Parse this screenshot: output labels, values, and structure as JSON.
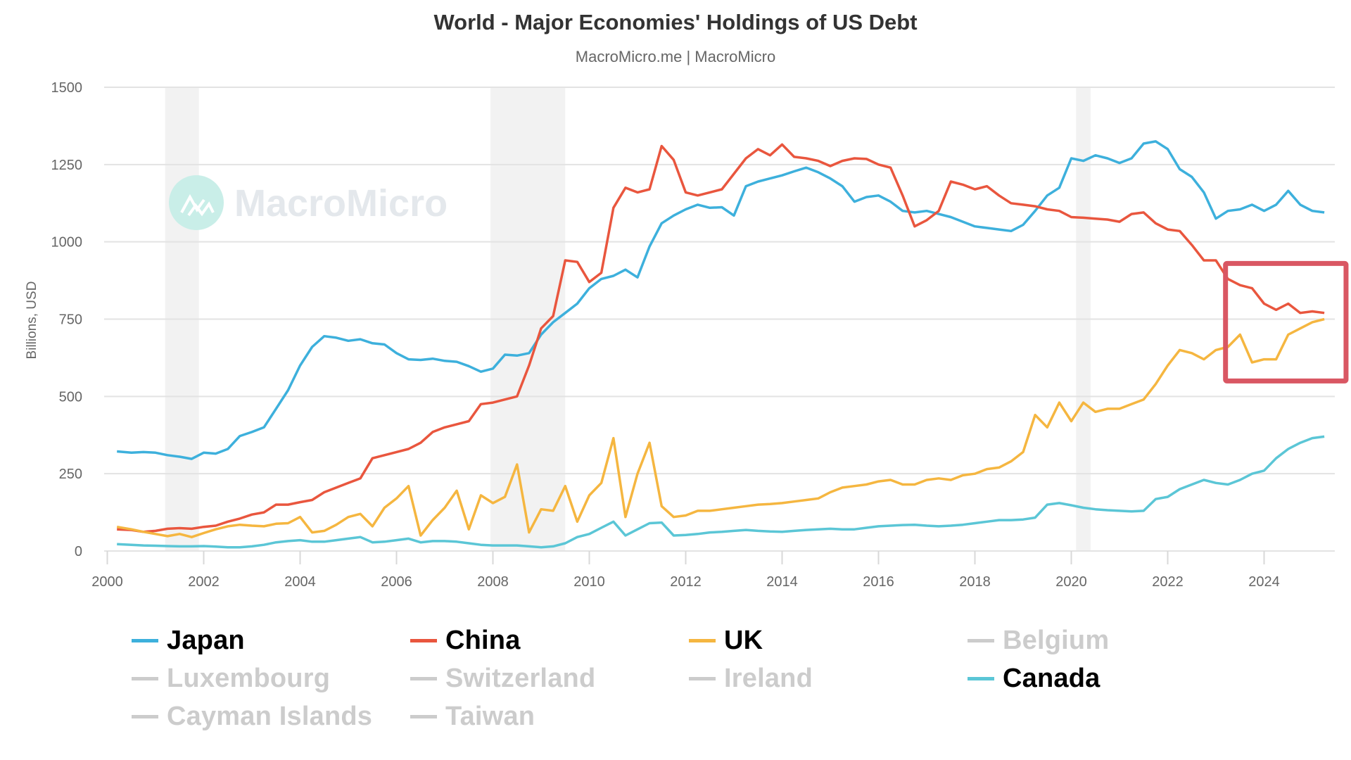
{
  "chart_data": {
    "type": "line",
    "title": "World - Major Economies' Holdings of US Debt",
    "subtitle": "MacroMicro.me | MacroMicro",
    "watermark": "MacroMicro",
    "xlabel": "",
    "ylabel": "Billions, USD",
    "xlim": [
      2000,
      2025.5
    ],
    "ylim": [
      0,
      1500
    ],
    "x_ticks": [
      "2000",
      "2002",
      "2004",
      "2006",
      "2008",
      "2010",
      "2012",
      "2014",
      "2016",
      "2018",
      "2020",
      "2022",
      "2024"
    ],
    "y_ticks": [
      "0",
      "250",
      "500",
      "750",
      "1000",
      "1250",
      "1500"
    ],
    "grid": true,
    "legend_position": "bottom",
    "recession_bands": [
      [
        2001.2,
        2001.9
      ],
      [
        2007.95,
        2009.5
      ],
      [
        2020.1,
        2020.4
      ]
    ],
    "highlight_box": {
      "x_range": [
        2023.2,
        2025.7
      ],
      "y_range": [
        550,
        930
      ],
      "color": "#d95763"
    },
    "x": [
      2000.2,
      2000.5,
      2000.75,
      2001,
      2001.25,
      2001.5,
      2001.75,
      2002,
      2002.25,
      2002.5,
      2002.75,
      2003,
      2003.25,
      2003.5,
      2003.75,
      2004,
      2004.25,
      2004.5,
      2004.75,
      2005,
      2005.25,
      2005.5,
      2005.75,
      2006,
      2006.25,
      2006.5,
      2006.75,
      2007,
      2007.25,
      2007.5,
      2007.75,
      2008,
      2008.25,
      2008.5,
      2008.75,
      2009,
      2009.25,
      2009.5,
      2009.75,
      2010,
      2010.25,
      2010.5,
      2010.75,
      2011,
      2011.25,
      2011.5,
      2011.75,
      2012,
      2012.25,
      2012.5,
      2012.75,
      2013,
      2013.25,
      2013.5,
      2013.75,
      2014,
      2014.25,
      2014.5,
      2014.75,
      2015,
      2015.25,
      2015.5,
      2015.75,
      2016,
      2016.25,
      2016.5,
      2016.75,
      2017,
      2017.25,
      2017.5,
      2017.75,
      2018,
      2018.25,
      2018.5,
      2018.75,
      2019,
      2019.25,
      2019.5,
      2019.75,
      2020,
      2020.25,
      2020.5,
      2020.75,
      2021,
      2021.25,
      2021.5,
      2021.75,
      2022,
      2022.25,
      2022.5,
      2022.75,
      2023,
      2023.25,
      2023.5,
      2023.75,
      2024,
      2024.25,
      2024.5,
      2024.75,
      2025,
      2025.25
    ],
    "series": [
      {
        "name": "Japan",
        "color": "#3db0dc",
        "visible": true,
        "values": [
          322,
          318,
          320,
          318,
          310,
          305,
          298,
          318,
          315,
          330,
          372,
          385,
          400,
          460,
          520,
          600,
          660,
          695,
          690,
          680,
          685,
          672,
          668,
          640,
          620,
          618,
          622,
          615,
          612,
          598,
          580,
          590,
          635,
          632,
          640,
          700,
          740,
          770,
          800,
          850,
          880,
          890,
          910,
          885,
          985,
          1060,
          1085,
          1105,
          1120,
          1110,
          1112,
          1085,
          1180,
          1195,
          1205,
          1215,
          1228,
          1240,
          1225,
          1205,
          1180,
          1130,
          1145,
          1150,
          1130,
          1100,
          1095,
          1100,
          1090,
          1080,
          1065,
          1050,
          1045,
          1040,
          1035,
          1055,
          1100,
          1150,
          1175,
          1270,
          1262,
          1280,
          1270,
          1255,
          1270,
          1318,
          1325,
          1300,
          1235,
          1210,
          1160,
          1075,
          1100,
          1105,
          1120,
          1100,
          1120,
          1165,
          1120,
          1100,
          1095,
          1075,
          1135
        ]
      },
      {
        "name": "China",
        "color": "#e9563e",
        "visible": true,
        "values": [
          70,
          68,
          62,
          65,
          72,
          74,
          72,
          78,
          82,
          95,
          105,
          118,
          125,
          150,
          150,
          158,
          165,
          190,
          205,
          220,
          235,
          300,
          310,
          320,
          330,
          350,
          385,
          400,
          410,
          420,
          475,
          480,
          490,
          500,
          600,
          720,
          760,
          940,
          935,
          870,
          900,
          1110,
          1175,
          1160,
          1170,
          1310,
          1265,
          1160,
          1150,
          1160,
          1170,
          1220,
          1270,
          1300,
          1280,
          1315,
          1275,
          1270,
          1262,
          1245,
          1262,
          1270,
          1268,
          1250,
          1240,
          1150,
          1050,
          1070,
          1100,
          1195,
          1185,
          1170,
          1180,
          1150,
          1125,
          1120,
          1115,
          1105,
          1100,
          1080,
          1078,
          1075,
          1072,
          1065,
          1090,
          1095,
          1060,
          1040,
          1035,
          990,
          940,
          940,
          880,
          860,
          850,
          800,
          780,
          800,
          770,
          775,
          770,
          760,
          760
        ]
      },
      {
        "name": "UK",
        "color": "#f5b640",
        "visible": true,
        "values": [
          78,
          70,
          62,
          55,
          48,
          55,
          45,
          58,
          70,
          80,
          85,
          82,
          80,
          88,
          90,
          110,
          60,
          65,
          85,
          110,
          120,
          80,
          140,
          170,
          210,
          50,
          100,
          140,
          195,
          70,
          180,
          155,
          175,
          280,
          60,
          135,
          130,
          210,
          95,
          180,
          220,
          365,
          110,
          250,
          350,
          145,
          110,
          115,
          130,
          130,
          135,
          140,
          145,
          150,
          152,
          155,
          160,
          165,
          170,
          190,
          205,
          210,
          215,
          225,
          230,
          215,
          215,
          230,
          235,
          230,
          245,
          250,
          265,
          270,
          290,
          320,
          440,
          400,
          480,
          420,
          480,
          450,
          460,
          460,
          475,
          490,
          540,
          600,
          650,
          640,
          620,
          650,
          660,
          700,
          610,
          620,
          620,
          700,
          720,
          740,
          750,
          760,
          800
        ]
      },
      {
        "name": "Belgium",
        "color": "#cccccc",
        "visible": false,
        "values": []
      },
      {
        "name": "Luxembourg",
        "color": "#cccccc",
        "visible": false,
        "values": []
      },
      {
        "name": "Switzerland",
        "color": "#cccccc",
        "visible": false,
        "values": []
      },
      {
        "name": "Ireland",
        "color": "#cccccc",
        "visible": false,
        "values": []
      },
      {
        "name": "Canada",
        "color": "#5bc6d6",
        "visible": true,
        "values": [
          22,
          20,
          18,
          17,
          16,
          15,
          15,
          16,
          14,
          12,
          12,
          15,
          20,
          28,
          32,
          35,
          30,
          30,
          35,
          40,
          45,
          28,
          30,
          35,
          40,
          28,
          32,
          32,
          30,
          25,
          20,
          18,
          18,
          18,
          15,
          12,
          15,
          25,
          45,
          55,
          75,
          95,
          50,
          70,
          90,
          92,
          50,
          52,
          55,
          60,
          62,
          65,
          68,
          65,
          63,
          62,
          65,
          68,
          70,
          72,
          70,
          70,
          75,
          80,
          82,
          84,
          85,
          82,
          80,
          82,
          85,
          90,
          95,
          100,
          100,
          102,
          108,
          150,
          155,
          148,
          140,
          135,
          132,
          130,
          128,
          130,
          168,
          175,
          200,
          215,
          230,
          220,
          215,
          230,
          250,
          260,
          300,
          330,
          350,
          365,
          370,
          375,
          370
        ]
      },
      {
        "name": "Cayman Islands",
        "color": "#cccccc",
        "visible": false,
        "values": []
      },
      {
        "name": "Taiwan",
        "color": "#cccccc",
        "visible": false,
        "values": []
      }
    ]
  },
  "legend": [
    {
      "label": "Japan",
      "color": "#3db0dc",
      "active": true
    },
    {
      "label": "China",
      "color": "#e9563e",
      "active": true
    },
    {
      "label": "UK",
      "color": "#f5b640",
      "active": true
    },
    {
      "label": "Belgium",
      "color": "#cccccc",
      "active": false
    },
    {
      "label": "Luxembourg",
      "color": "#cccccc",
      "active": false
    },
    {
      "label": "Switzerland",
      "color": "#cccccc",
      "active": false
    },
    {
      "label": "Ireland",
      "color": "#cccccc",
      "active": false
    },
    {
      "label": "Canada",
      "color": "#5bc6d6",
      "active": true
    },
    {
      "label": "Cayman Islands",
      "color": "#cccccc",
      "active": false
    },
    {
      "label": "Taiwan",
      "color": "#cccccc",
      "active": false
    }
  ]
}
